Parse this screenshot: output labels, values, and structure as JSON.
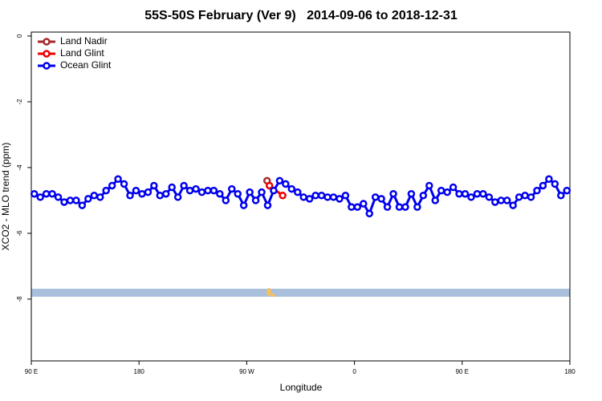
{
  "chart_data": {
    "type": "line",
    "title": "55S-50S February (Ver 9)   2014-09-06 to 2018-12-31",
    "xlabel": "Longitude",
    "ylabel": "XCO2 - MLO trend (ppm)",
    "xlim": [
      90,
      540
    ],
    "ylim": [
      -9.88,
      0.12
    ],
    "xticks": [
      {
        "value": 90,
        "label": "90 E"
      },
      180,
      {
        "value": 270,
        "label": "90 W"
      },
      {
        "value": 360,
        "label": "0"
      },
      {
        "value": 450,
        "label": "90 E"
      },
      {
        "value": 540,
        "label": "180"
      }
    ],
    "yticks": [
      0,
      -2,
      -4,
      -6,
      -8
    ],
    "legend": "top-left",
    "series": [
      {
        "name": "Land Nadir",
        "color": "#a52a2a",
        "x": [
          287
        ],
        "values": [
          -4.4
        ]
      },
      {
        "name": "Land Glint",
        "color": "#ee0000",
        "x": [
          289,
          300
        ],
        "values": [
          -4.55,
          -4.85
        ]
      },
      {
        "name": "Ocean Glint",
        "color": "#0000ee",
        "x": [
          92.5,
          97.5,
          102.5,
          107.5,
          112.5,
          117.5,
          122.5,
          127.5,
          132.5,
          137.5,
          142.5,
          147.5,
          152.5,
          157.5,
          162.5,
          167.5,
          172.5,
          177.5,
          182.5,
          187.5,
          192.5,
          197.5,
          202.5,
          207.5,
          212.5,
          217.5,
          222.5,
          227.5,
          232.5,
          237.5,
          242.5,
          247.5,
          252.5,
          257.5,
          262.5,
          267.5,
          272.5,
          277.5,
          282.5,
          287.5,
          292.5,
          297.5,
          302.5,
          307.5,
          312.5,
          317.5,
          322.5,
          327.5,
          332.5,
          337.5,
          342.5,
          347.5,
          352.5,
          357.5,
          362.5,
          367.5,
          372.5,
          377.5,
          382.5,
          387.5,
          392.5,
          397.5,
          402.5,
          407.5,
          412.5,
          417.5,
          422.5,
          427.5,
          432.5,
          437.5,
          442.5,
          447.5,
          452.5,
          457.5,
          462.5,
          467.5,
          472.5,
          477.5,
          482.5,
          487.5,
          492.5,
          497.5,
          502.5,
          507.5,
          512.5,
          517.5,
          522.5,
          527.5,
          532.5,
          537.5
        ],
        "values": [
          -4.8,
          -4.9,
          -4.8,
          -4.8,
          -4.9,
          -5.05,
          -5.0,
          -5.0,
          -5.15,
          -4.95,
          -4.85,
          -4.9,
          -4.7,
          -4.55,
          -4.35,
          -4.5,
          -4.85,
          -4.7,
          -4.8,
          -4.75,
          -4.55,
          -4.85,
          -4.8,
          -4.6,
          -4.9,
          -4.55,
          -4.7,
          -4.65,
          -4.75,
          -4.7,
          -4.7,
          -4.8,
          -5.0,
          -4.65,
          -4.8,
          -5.15,
          -4.75,
          -5.0,
          -4.75,
          -5.15,
          -4.7,
          -4.4,
          -4.5,
          -4.65,
          -4.75,
          -4.9,
          -4.95,
          -4.85,
          -4.85,
          -4.9,
          -4.9,
          -4.95,
          -4.85,
          -5.2,
          -5.2,
          -5.1,
          -5.4,
          -4.9,
          -4.95,
          -5.2,
          -4.8,
          -5.2,
          -5.2,
          -4.8,
          -5.2,
          -4.85,
          -4.55,
          -5.0,
          -4.7,
          -4.75,
          -4.6,
          -4.8,
          -4.8,
          -4.9,
          -4.8,
          -4.8,
          -4.9,
          -5.05,
          -5.0,
          -5.0,
          -5.15,
          -4.9,
          -4.85,
          -4.9,
          -4.7,
          -4.55,
          -4.35,
          -4.5,
          -4.85,
          -4.7
        ]
      }
    ]
  }
}
